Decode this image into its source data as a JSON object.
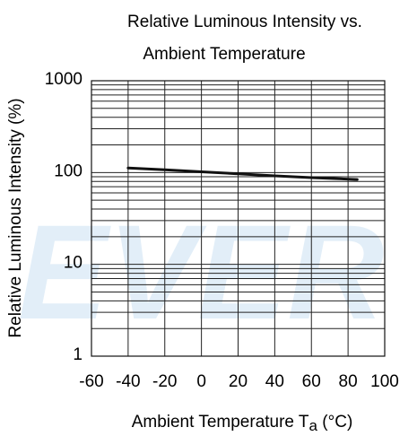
{
  "chart_data": {
    "type": "line",
    "title": "Relative Luminous Intensity vs.",
    "subtitle": "Ambient Temperature",
    "ylabel": "Relative Luminous Intensity  (%)",
    "xlabel_main": "Ambient Temperature T",
    "xlabel_sub": "a",
    "xlabel_unit": " (°C)",
    "x_scale": "linear",
    "y_scale": "log",
    "xlim": [
      -60,
      100
    ],
    "ylim": [
      1,
      1000
    ],
    "x_ticks": [
      -60,
      -40,
      -20,
      0,
      20,
      40,
      60,
      80,
      100
    ],
    "x_tick_labels": [
      "-60",
      "-40",
      "-20",
      "0",
      "20",
      "40",
      "60",
      "80",
      "100"
    ],
    "y_ticks": [
      1,
      10,
      100,
      1000
    ],
    "y_tick_labels": [
      "1",
      "10",
      "100",
      "1000"
    ],
    "grid": true,
    "series": [
      {
        "x": [
          -40,
          -20,
          0,
          20,
          40,
          60,
          85
        ],
        "y": [
          112,
          107,
          102,
          97,
          92,
          88,
          84
        ]
      }
    ]
  },
  "watermark": "EVER",
  "colors": {
    "line": "#111111",
    "grid": "#222222",
    "watermark": "#dcebf7"
  }
}
